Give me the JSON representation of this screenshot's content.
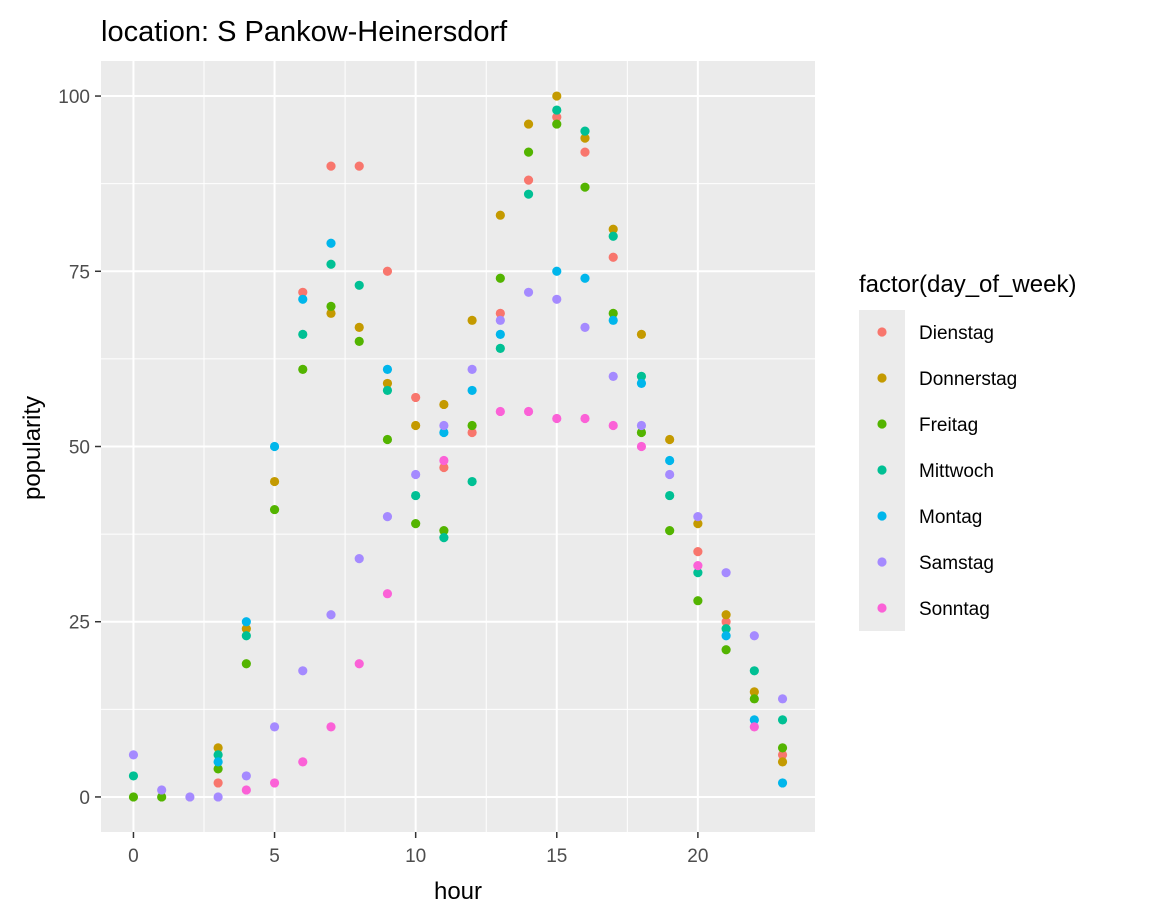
{
  "chart_data": {
    "type": "scatter",
    "title": "location: S Pankow-Heinersdorf",
    "xlabel": "hour",
    "ylabel": "popularity",
    "xlim": [
      -1.15,
      24.15
    ],
    "ylim": [
      -5,
      105
    ],
    "x_ticks": [
      0,
      5,
      10,
      15,
      20
    ],
    "y_ticks": [
      0,
      25,
      50,
      75,
      100
    ],
    "x_tick_labels": [
      "0",
      "5",
      "10",
      "15",
      "20"
    ],
    "y_tick_labels": [
      "0",
      "25",
      "50",
      "75",
      "100"
    ],
    "grid": true,
    "legend_title": "factor(day_of_week)",
    "legend_position": "right",
    "series": [
      {
        "name": "Dienstag",
        "color": "#F8766D",
        "x": [
          3,
          6,
          7,
          8,
          9,
          10,
          11,
          12,
          13,
          14,
          15,
          16,
          17,
          20,
          21,
          23
        ],
        "y": [
          2,
          72,
          90,
          90,
          75,
          57,
          47,
          52,
          69,
          88,
          97,
          92,
          77,
          35,
          25,
          6
        ]
      },
      {
        "name": "Donnerstag",
        "color": "#C49A00",
        "x": [
          3,
          4,
          5,
          7,
          8,
          9,
          10,
          11,
          12,
          13,
          14,
          15,
          16,
          17,
          18,
          19,
          20,
          21,
          22,
          23
        ],
        "y": [
          7,
          24,
          45,
          69,
          67,
          59,
          53,
          56,
          68,
          83,
          96,
          100,
          94,
          81,
          66,
          51,
          39,
          26,
          15,
          5
        ]
      },
      {
        "name": "Freitag",
        "color": "#53B400",
        "x": [
          0,
          1,
          3,
          4,
          5,
          6,
          7,
          8,
          9,
          10,
          11,
          12,
          13,
          14,
          15,
          16,
          17,
          18,
          19,
          20,
          21,
          22,
          23
        ],
        "y": [
          0,
          0,
          4,
          19,
          41,
          61,
          70,
          65,
          51,
          39,
          38,
          53,
          74,
          92,
          96,
          87,
          69,
          52,
          38,
          28,
          21,
          14,
          7
        ]
      },
      {
        "name": "Mittwoch",
        "color": "#00C094",
        "x": [
          0,
          3,
          4,
          6,
          7,
          8,
          9,
          10,
          11,
          12,
          13,
          14,
          15,
          16,
          17,
          18,
          19,
          20,
          21,
          22,
          23
        ],
        "y": [
          3,
          6,
          23,
          66,
          76,
          73,
          58,
          43,
          37,
          45,
          64,
          86,
          98,
          95,
          80,
          60,
          43,
          32,
          24,
          18,
          11
        ]
      },
      {
        "name": "Montag",
        "color": "#00B6EB",
        "x": [
          3,
          4,
          5,
          6,
          7,
          9,
          11,
          12,
          13,
          15,
          16,
          17,
          18,
          19,
          21,
          22,
          23
        ],
        "y": [
          5,
          25,
          50,
          71,
          79,
          61,
          52,
          58,
          66,
          75,
          74,
          68,
          59,
          48,
          23,
          11,
          2
        ]
      },
      {
        "name": "Samstag",
        "color": "#A58AFF",
        "x": [
          0,
          1,
          2,
          3,
          4,
          5,
          6,
          7,
          8,
          9,
          10,
          11,
          12,
          13,
          14,
          15,
          16,
          17,
          18,
          19,
          20,
          21,
          22,
          23
        ],
        "y": [
          6,
          1,
          0,
          0,
          3,
          10,
          18,
          26,
          34,
          40,
          46,
          53,
          61,
          68,
          72,
          71,
          67,
          60,
          53,
          46,
          40,
          32,
          23,
          14
        ]
      },
      {
        "name": "Sonntag",
        "color": "#FB61D7",
        "x": [
          4,
          5,
          6,
          7,
          8,
          9,
          11,
          13,
          14,
          15,
          16,
          17,
          18,
          20,
          22
        ],
        "y": [
          1,
          2,
          5,
          10,
          19,
          29,
          48,
          55,
          55,
          54,
          54,
          53,
          50,
          33,
          10
        ]
      }
    ]
  }
}
